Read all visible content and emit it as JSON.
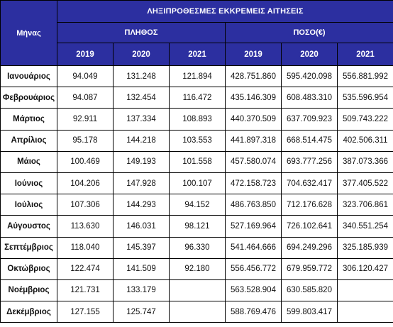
{
  "table": {
    "month_header": "Μήνας",
    "title": "ΛΗΞΙΠΡΟΘΕΣΜΕΣ ΕΚΚΡΕΜΕΙΣ ΑΙΤΗΣΕΙΣ",
    "group_count": "ΠΛΗΘΟΣ",
    "group_amount": "ΠΟΣΟ(€)",
    "years_count": [
      "2019",
      "2020",
      "2021"
    ],
    "years_amount": [
      "2019",
      "2020",
      "2021"
    ],
    "rows": [
      {
        "month": "Ιανουάριος",
        "c2019": "94.049",
        "c2020": "131.248",
        "c2021": "121.894",
        "a2019": "428.751.860",
        "a2020": "595.420.098",
        "a2021": "556.881.992"
      },
      {
        "month": "Φεβρουάριος",
        "c2019": "94.087",
        "c2020": "132.454",
        "c2021": "116.472",
        "a2019": "435.146.309",
        "a2020": "608.483.310",
        "a2021": "535.596.954"
      },
      {
        "month": "Μάρτιος",
        "c2019": "92.911",
        "c2020": "137.334",
        "c2021": "108.893",
        "a2019": "440.370.509",
        "a2020": "637.709.923",
        "a2021": "509.743.222"
      },
      {
        "month": "Απρίλιος",
        "c2019": "95.178",
        "c2020": "144.218",
        "c2021": "103.553",
        "a2019": "441.897.318",
        "a2020": "668.514.475",
        "a2021": "402.506.311"
      },
      {
        "month": "Μάιος",
        "c2019": "100.469",
        "c2020": "149.193",
        "c2021": "101.558",
        "a2019": "457.580.074",
        "a2020": "693.777.256",
        "a2021": "387.073.366"
      },
      {
        "month": "Ιούνιος",
        "c2019": "104.206",
        "c2020": "147.928",
        "c2021": "100.107",
        "a2019": "472.158.723",
        "a2020": "704.632.417",
        "a2021": "377.405.522"
      },
      {
        "month": "Ιούλιος",
        "c2019": "107.306",
        "c2020": "144.293",
        "c2021": "94.152",
        "a2019": "486.763.850",
        "a2020": "712.176.628",
        "a2021": "323.706.861"
      },
      {
        "month": "Αύγουστος",
        "c2019": "113.630",
        "c2020": "146.031",
        "c2021": "98.121",
        "a2019": "527.169.964",
        "a2020": "726.102.641",
        "a2021": "340.551.254"
      },
      {
        "month": "Σεπτέμβριος",
        "c2019": "118.040",
        "c2020": "145.397",
        "c2021": "96.330",
        "a2019": "541.464.666",
        "a2020": "694.249.296",
        "a2021": "325.185.939"
      },
      {
        "month": "Οκτώβριος",
        "c2019": "122.474",
        "c2020": "141.509",
        "c2021": "92.180",
        "a2019": "556.456.772",
        "a2020": "679.959.772",
        "a2021": "306.120.427"
      },
      {
        "month": "Νοέμβριος",
        "c2019": "121.731",
        "c2020": "133.179",
        "c2021": "",
        "a2019": "563.528.904",
        "a2020": "630.585.820",
        "a2021": ""
      },
      {
        "month": "Δεκέμβριος",
        "c2019": "127.155",
        "c2020": "125.747",
        "c2021": "",
        "a2019": "588.769.476",
        "a2020": "599.803.417",
        "a2021": ""
      }
    ]
  },
  "colors": {
    "header_bg": "#2c2fa0",
    "header_text": "#ffffff",
    "grid": "#000000"
  }
}
